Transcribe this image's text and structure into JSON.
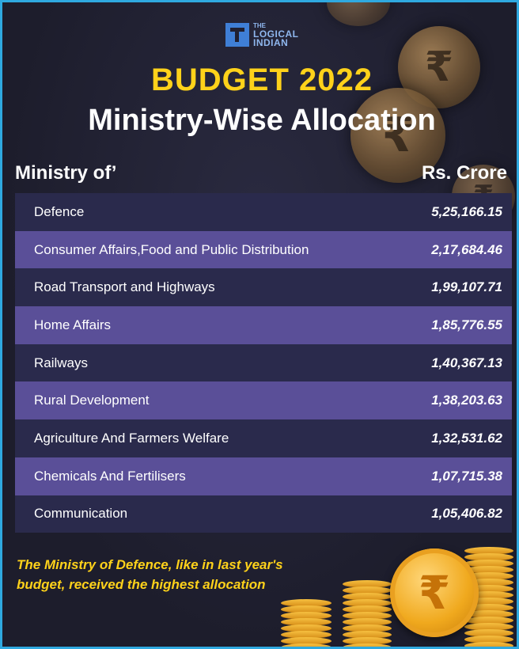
{
  "logo": {
    "line1": "THE",
    "line2": "LOGICAL",
    "line3": "INDIAN"
  },
  "title": {
    "line1": "BUDGET 2022",
    "line2": "Ministry-Wise Allocation"
  },
  "table": {
    "header_left": "Ministry of’",
    "header_right": "Rs. Crore",
    "rows": [
      {
        "ministry": "Defence",
        "amount": "5,25,166.15"
      },
      {
        "ministry": "Consumer Affairs,Food and Public Distribution",
        "amount": "2,17,684.46"
      },
      {
        "ministry": "Road Transport and Highways",
        "amount": "1,99,107.71"
      },
      {
        "ministry": "Home Affairs",
        "amount": "1,85,776.55"
      },
      {
        "ministry": "Railways",
        "amount": "1,40,367.13"
      },
      {
        "ministry": "Rural Development",
        "amount": "1,38,203.63"
      },
      {
        "ministry": "Agriculture And Farmers Welfare",
        "amount": "1,32,531.62"
      },
      {
        "ministry": "Chemicals And Fertilisers",
        "amount": "1,07,715.38"
      },
      {
        "ministry": "Communication",
        "amount": "1,05,406.82"
      }
    ]
  },
  "note": "The Ministry of Defence, like in last year's budget, received the highest allocation",
  "decor": {
    "coin_symbol": "₹"
  },
  "colors": {
    "accent_yellow": "#ffd21a",
    "row_dark": "#2a2a4c",
    "row_light": "#5a4f98",
    "border": "#2fa9e0"
  }
}
